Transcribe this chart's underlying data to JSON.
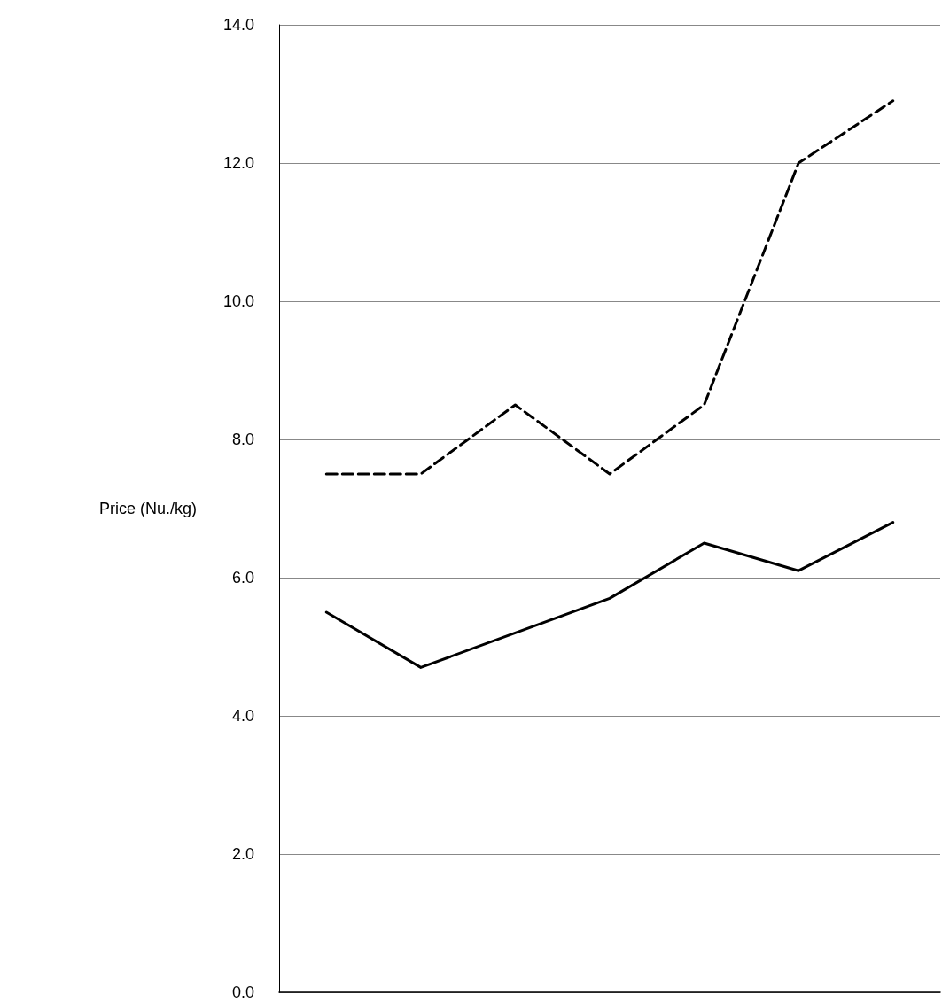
{
  "chart_data": {
    "type": "line",
    "ylabel": "Price (Nu./kg)",
    "categories": [
      null,
      null,
      null,
      null,
      null,
      null,
      null
    ],
    "series": [
      {
        "color": "#000000",
        "line_style": "dashed",
        "values": [
          7.5,
          7.5,
          8.5,
          7.5,
          8.5,
          12.0,
          12.9
        ]
      },
      {
        "color": "#000000",
        "line_style": "solid",
        "values": [
          5.5,
          4.7,
          5.2,
          5.7,
          6.5,
          6.1,
          6.8
        ]
      }
    ],
    "ylim": [
      0,
      14
    ],
    "yticks": [
      {
        "value": 0,
        "label": "0.0"
      },
      {
        "value": 2,
        "label": "2.0"
      },
      {
        "value": 4,
        "label": "4.0"
      },
      {
        "value": 6,
        "label": "6.0"
      },
      {
        "value": 8,
        "label": "8.0"
      },
      {
        "value": 10,
        "label": "10.0"
      },
      {
        "value": 12,
        "label": "12.0"
      },
      {
        "value": 14,
        "label": "14.0"
      }
    ],
    "grid": "y",
    "marker": "none"
  }
}
